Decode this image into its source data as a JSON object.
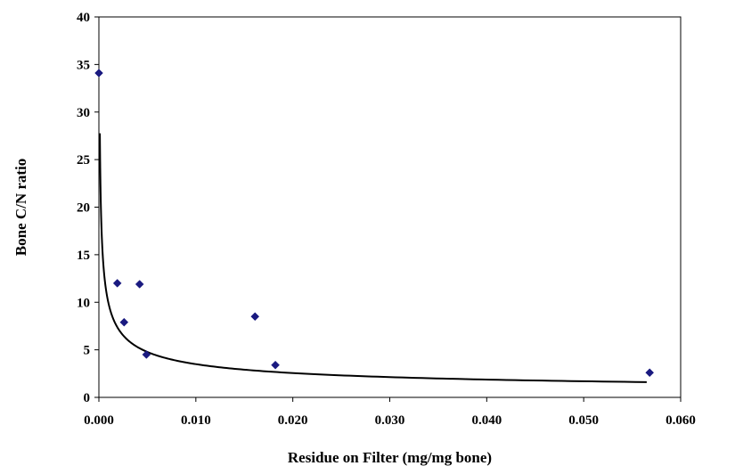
{
  "chart_data": {
    "type": "scatter",
    "title": "",
    "xlabel": "Residue on Filter (mg/mg bone)",
    "ylabel": "Bone C/N ratio",
    "xlim": [
      0.0,
      0.06
    ],
    "ylim": [
      0,
      40
    ],
    "x_ticks": [
      "0.000",
      "0.010",
      "0.020",
      "0.030",
      "0.040",
      "0.050",
      "0.060"
    ],
    "y_ticks": [
      "0",
      "5",
      "10",
      "15",
      "20",
      "25",
      "30",
      "35",
      "40"
    ],
    "grid": false,
    "legend": "none",
    "series": [
      {
        "type": "scatter",
        "marker": "diamond",
        "color": "#1a1a80",
        "points": [
          {
            "x": 0.0,
            "y": 34.1
          },
          {
            "x": 0.0019,
            "y": 12.0
          },
          {
            "x": 0.0026,
            "y": 7.9
          },
          {
            "x": 0.0042,
            "y": 11.9
          },
          {
            "x": 0.0049,
            "y": 4.5
          },
          {
            "x": 0.0161,
            "y": 8.5
          },
          {
            "x": 0.0182,
            "y": 3.4
          },
          {
            "x": 0.0568,
            "y": 2.6
          }
        ]
      }
    ],
    "trendline": {
      "type": "power",
      "color": "#000000",
      "coefficient": 0.44,
      "exponent": -0.45,
      "x_range": [
        0.0001,
        0.0565
      ]
    }
  }
}
